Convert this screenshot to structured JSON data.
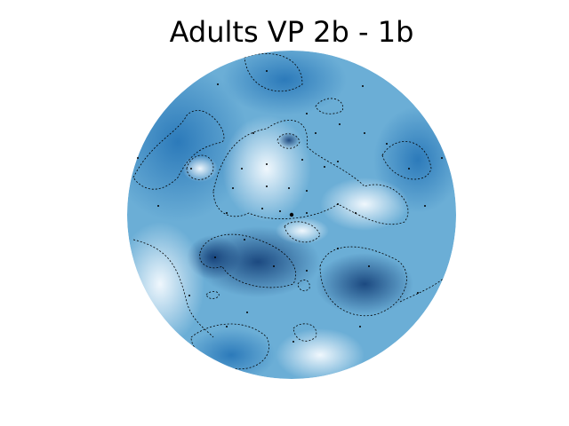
{
  "chart_data": {
    "type": "topomap",
    "title": "Adults VP 2b - 1b"
  }
}
